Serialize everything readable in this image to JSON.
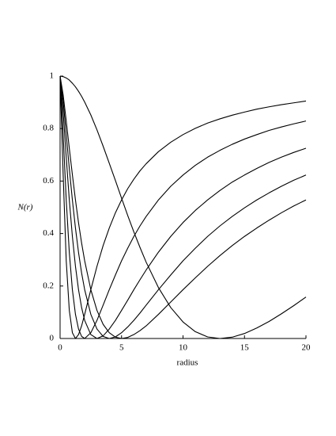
{
  "chart_data": {
    "type": "line",
    "x_label": "radius",
    "y_label": "N(r)",
    "x": [
      0,
      0.25,
      0.5,
      0.75,
      1,
      1.25,
      1.5,
      1.75,
      2,
      2.5,
      3,
      3.5,
      4,
      4.5,
      5,
      5.5,
      6,
      6.5,
      7,
      8,
      9,
      10,
      11,
      12,
      13,
      14,
      15,
      16,
      17,
      18,
      19,
      20
    ],
    "series": [
      {
        "color": "#000000",
        "values": [
          1,
          0.624,
          0.296,
          0.107,
          0.022,
          0,
          0.015,
          0.048,
          0.092,
          0.186,
          0.275,
          0.354,
          0.421,
          0.479,
          0.528,
          0.571,
          0.607,
          0.639,
          0.666,
          0.712,
          0.748,
          0.777,
          0.801,
          0.821,
          0.837,
          0.851,
          0.863,
          0.874,
          0.883,
          0.891,
          0.898,
          0.905
        ]
      },
      {
        "color": "#000000",
        "values": [
          1,
          0.777,
          0.528,
          0.328,
          0.186,
          0.092,
          0.036,
          0.008,
          0,
          0.022,
          0.069,
          0.127,
          0.186,
          0.242,
          0.296,
          0.344,
          0.389,
          0.429,
          0.465,
          0.528,
          0.58,
          0.623,
          0.66,
          0.691,
          0.717,
          0.74,
          0.76,
          0.777,
          0.793,
          0.806,
          0.818,
          0.829
        ]
      },
      {
        "color": "#000000",
        "values": [
          1,
          0.863,
          0.691,
          0.528,
          0.389,
          0.275,
          0.186,
          0.118,
          0.069,
          0.015,
          0,
          0.01,
          0.036,
          0.069,
          0.107,
          0.146,
          0.186,
          0.224,
          0.261,
          0.329,
          0.389,
          0.442,
          0.488,
          0.528,
          0.564,
          0.596,
          0.623,
          0.648,
          0.671,
          0.691,
          0.709,
          0.725
        ]
      },
      {
        "color": "#000000",
        "values": [
          1,
          0.905,
          0.777,
          0.648,
          0.528,
          0.421,
          0.328,
          0.25,
          0.186,
          0.092,
          0.036,
          0.008,
          0,
          0.006,
          0.022,
          0.044,
          0.069,
          0.097,
          0.127,
          0.186,
          0.242,
          0.296,
          0.344,
          0.389,
          0.429,
          0.465,
          0.498,
          0.528,
          0.555,
          0.58,
          0.603,
          0.623
        ]
      },
      {
        "color": "#000000",
        "values": [
          1,
          0.928,
          0.829,
          0.725,
          0.624,
          0.528,
          0.441,
          0.364,
          0.296,
          0.186,
          0.107,
          0.054,
          0.022,
          0.005,
          0,
          0.004,
          0.015,
          0.03,
          0.048,
          0.092,
          0.139,
          0.186,
          0.231,
          0.275,
          0.316,
          0.354,
          0.389,
          0.421,
          0.451,
          0.479,
          0.505,
          0.528
        ]
      },
      {
        "color": "#000000",
        "values": [
          1,
          0.998,
          0.993,
          0.985,
          0.973,
          0.959,
          0.942,
          0.923,
          0.901,
          0.852,
          0.795,
          0.733,
          0.668,
          0.602,
          0.535,
          0.469,
          0.406,
          0.347,
          0.291,
          0.194,
          0.118,
          0.063,
          0.026,
          0.006,
          0,
          0.005,
          0.019,
          0.04,
          0.065,
          0.094,
          0.125,
          0.158
        ]
      }
    ],
    "xlim": [
      0,
      20
    ],
    "xticks": [
      0,
      5,
      10,
      15,
      20
    ],
    "ylim": [
      0,
      1
    ],
    "yticks": [
      0,
      0.2,
      0.4,
      0.6,
      0.8,
      1
    ]
  }
}
